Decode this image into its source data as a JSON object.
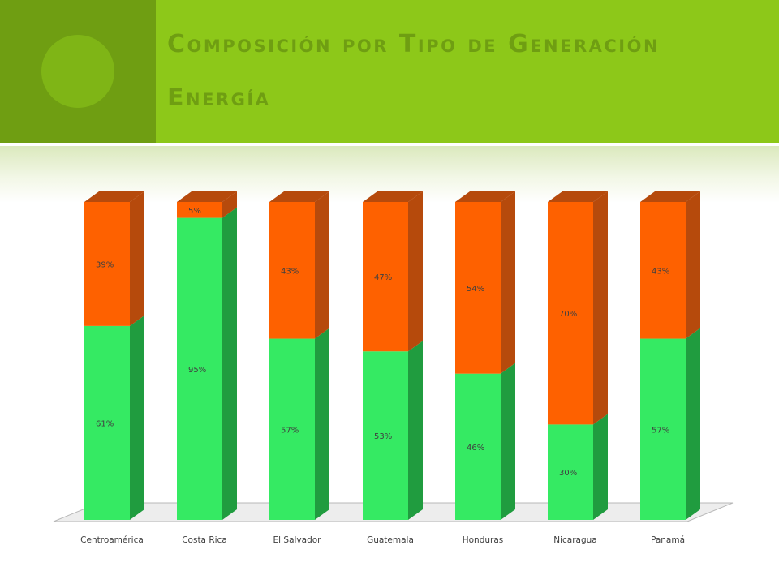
{
  "slide": {
    "title_line1": "Composición por Tipo de Generación",
    "title_line2": "Energía"
  },
  "colors": {
    "header_bg": "#8dc819",
    "header_dark": "#6f9e12",
    "renewable_front": "#35ea63",
    "renewable_side": "#209c3f",
    "nonrenewable_front": "#fe6100",
    "nonrenewable_side": "#b64a0c"
  },
  "chart_data": {
    "type": "bar",
    "stacked": true,
    "percent": true,
    "three_d": true,
    "categories": [
      "Centroamérica",
      "Costa Rica",
      "El Salvador",
      "Guatemala",
      "Honduras",
      "Nicaragua",
      "Panamá"
    ],
    "series": [
      {
        "values": [
          61,
          95,
          57,
          53,
          46,
          30,
          57
        ],
        "labels": [
          "61%",
          "95%",
          "57%",
          "53%",
          "46%",
          "30%",
          "57%"
        ],
        "color": "#35ea63"
      },
      {
        "values": [
          39,
          5,
          43,
          47,
          54,
          70,
          43
        ],
        "labels": [
          "39%",
          "5%",
          "43%",
          "47%",
          "54%",
          "70%",
          "43%"
        ],
        "color": "#fe6100"
      }
    ],
    "ylim": [
      0,
      100
    ],
    "legend": "none",
    "grid": false
  }
}
